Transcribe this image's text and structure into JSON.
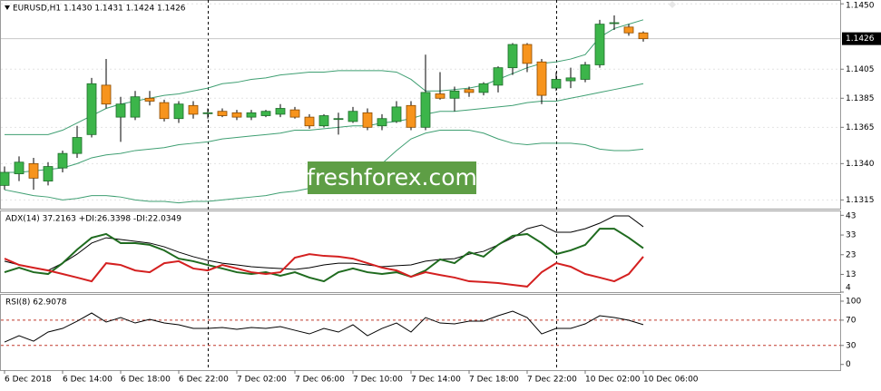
{
  "chart_data": [
    {
      "type": "candlestick",
      "title": "EURUSD,H1  1.1430 1.1431 1.1424 1.1426",
      "watermark": "freshforex.com",
      "categories": [
        "6 Dec 2018",
        null,
        null,
        null,
        "6 Dec 14:00",
        null,
        null,
        null,
        "6 Dec 18:00",
        null,
        null,
        null,
        "6 Dec 22:00",
        null,
        null,
        null,
        "7 Dec 02:00",
        null,
        null,
        null,
        "7 Dec 06:00",
        null,
        null,
        null,
        "7 Dec 10:00",
        null,
        null,
        null,
        "7 Dec 14:00",
        null,
        null,
        null,
        "7 Dec 18:00",
        null,
        null,
        null,
        "7 Dec 22:00",
        null,
        null,
        null,
        "10 Dec 02:00",
        null,
        null,
        null,
        "10 Dec 06:00"
      ],
      "open": [
        1.1325,
        1.1333,
        1.134,
        1.1328,
        1.1337,
        1.1347,
        1.136,
        1.1394,
        1.1372,
        1.1372,
        1.1385,
        1.1382,
        1.1371,
        1.138,
        1.1375,
        1.1376,
        1.1375,
        1.1372,
        1.1373,
        1.1374,
        1.1377,
        1.1372,
        1.1366,
        1.1371,
        1.1369,
        1.1375,
        1.1366,
        1.1369,
        1.138,
        1.1365,
        1.1388,
        1.1385,
        1.1391,
        1.1389,
        1.1394,
        1.1406,
        1.1422,
        1.141,
        1.1392,
        1.1397,
        1.1398,
        1.1408,
        1.1437,
        1.1434,
        1.143
      ],
      "high": [
        1.1338,
        1.1345,
        1.1344,
        1.1341,
        1.1349,
        1.1366,
        1.1399,
        1.1412,
        1.1386,
        1.139,
        1.139,
        1.1384,
        1.1383,
        1.1383,
        1.1378,
        1.1378,
        1.1377,
        1.1377,
        1.1377,
        1.1381,
        1.1379,
        1.1374,
        1.1374,
        1.1375,
        1.1379,
        1.1378,
        1.1374,
        1.1383,
        1.1383,
        1.1415,
        1.1403,
        1.1393,
        1.1393,
        1.1396,
        1.1407,
        1.1423,
        1.1423,
        1.1412,
        1.1403,
        1.1406,
        1.141,
        1.1439,
        1.1442,
        1.1436,
        1.1431
      ],
      "low": [
        1.1322,
        1.1328,
        1.1322,
        1.1325,
        1.1334,
        1.1344,
        1.1358,
        1.1378,
        1.1355,
        1.137,
        1.138,
        1.1369,
        1.1368,
        1.1371,
        1.1371,
        1.1372,
        1.137,
        1.137,
        1.1372,
        1.1372,
        1.1371,
        1.1364,
        1.1365,
        1.136,
        1.1368,
        1.1363,
        1.1363,
        1.1368,
        1.1363,
        1.1363,
        1.1384,
        1.1376,
        1.1386,
        1.1387,
        1.1389,
        1.1401,
        1.1403,
        1.1381,
        1.139,
        1.1392,
        1.1396,
        1.1406,
        1.1432,
        1.1428,
        1.1424
      ],
      "close": [
        1.1334,
        1.1341,
        1.133,
        1.1338,
        1.1347,
        1.1358,
        1.1395,
        1.1381,
        1.1381,
        1.1386,
        1.1383,
        1.1371,
        1.1381,
        1.1374,
        1.1375,
        1.1373,
        1.1372,
        1.1375,
        1.1376,
        1.1378,
        1.1372,
        1.1366,
        1.1373,
        1.1371,
        1.1376,
        1.1365,
        1.1371,
        1.1379,
        1.1365,
        1.1389,
        1.1385,
        1.139,
        1.1389,
        1.1395,
        1.1406,
        1.1422,
        1.1409,
        1.1387,
        1.1398,
        1.1399,
        1.1408,
        1.1436,
        1.1437,
        1.143,
        1.1426
      ],
      "up_color": "#3cb54a",
      "down_color": "#f7941d",
      "bands": {
        "color": "#3f9f72",
        "upper": [
          1.136,
          1.136,
          1.136,
          1.136,
          1.1363,
          1.1368,
          1.1373,
          1.1378,
          1.1381,
          1.1383,
          1.1385,
          1.1387,
          1.1388,
          1.139,
          1.1392,
          1.1395,
          1.1396,
          1.1398,
          1.1399,
          1.1401,
          1.1402,
          1.1403,
          1.1403,
          1.1404,
          1.1404,
          1.1404,
          1.1404,
          1.1403,
          1.1398,
          1.139,
          1.139,
          1.1391,
          1.1392,
          1.1394,
          1.1398,
          1.1402,
          1.1406,
          1.1409,
          1.141,
          1.1412,
          1.1415,
          1.1427,
          1.1433,
          1.1436,
          1.1439
        ],
        "middle": [
          1.1334,
          1.1334,
          1.1335,
          1.1336,
          1.1337,
          1.134,
          1.1344,
          1.1346,
          1.1347,
          1.1349,
          1.135,
          1.1351,
          1.1353,
          1.1354,
          1.1355,
          1.1357,
          1.1358,
          1.1359,
          1.136,
          1.1361,
          1.1363,
          1.1363,
          1.1364,
          1.1365,
          1.1366,
          1.1366,
          1.1368,
          1.1369,
          1.1371,
          1.1374,
          1.1376,
          1.1376,
          1.1377,
          1.1378,
          1.1379,
          1.138,
          1.1382,
          1.1383,
          1.1383,
          1.1385,
          1.1387,
          1.1389,
          1.1391,
          1.1393,
          1.1395
        ],
        "lower": [
          1.1322,
          1.132,
          1.1318,
          1.1317,
          1.1315,
          1.1316,
          1.1318,
          1.1318,
          1.1317,
          1.1315,
          1.1314,
          1.1314,
          1.1313,
          1.1314,
          1.1314,
          1.1315,
          1.1316,
          1.1317,
          1.1318,
          1.132,
          1.1321,
          1.1323,
          1.1325,
          1.1326,
          1.133,
          1.1334,
          1.134,
          1.1349,
          1.1357,
          1.1361,
          1.1363,
          1.1363,
          1.1363,
          1.1361,
          1.1357,
          1.1354,
          1.1353,
          1.1354,
          1.1354,
          1.1354,
          1.1353,
          1.135,
          1.1349,
          1.1349,
          1.135
        ]
      },
      "current_price": 1.1426,
      "ylim": [
        1.1309,
        1.1452
      ],
      "yticks": [
        {
          "value": 1.145,
          "label": "1.1450"
        },
        1.1405,
        1.1385,
        1.1365,
        {
          "value": 1.134,
          "label": "1.1340"
        },
        1.1315
      ],
      "grid": true
    },
    {
      "type": "line",
      "title": "ADX(14) 37.2163 +DI:26.3398 -DI:22.0349",
      "series": [
        {
          "color": "#000000",
          "values": [
            19.7,
            17.8,
            16.4,
            15.0,
            18.7,
            23.3,
            28.9,
            31.6,
            30.7,
            29.8,
            28.9,
            27.0,
            24.3,
            22.0,
            20.1,
            18.7,
            17.8,
            16.9,
            16.4,
            16.0,
            15.5,
            16.4,
            17.8,
            18.7,
            18.7,
            17.8,
            16.9,
            17.4,
            17.8,
            19.7,
            20.6,
            21.0,
            23.3,
            24.7,
            28.0,
            31.6,
            36.2,
            38.1,
            34.4,
            34.4,
            36.2,
            39.0,
            42.7,
            42.7,
            37.2
          ]
        },
        {
          "color": "#1f6b1f",
          "values": [
            14.1,
            16.4,
            14.1,
            13.2,
            18.7,
            25.6,
            31.6,
            33.5,
            28.9,
            28.9,
            28.0,
            25.2,
            21.0,
            19.7,
            17.8,
            16.0,
            14.1,
            13.2,
            14.1,
            12.3,
            14.1,
            11.4,
            9.5,
            14.1,
            16.0,
            14.1,
            13.2,
            14.1,
            11.8,
            15.0,
            20.6,
            18.7,
            24.3,
            22.0,
            28.0,
            32.6,
            33.5,
            28.9,
            23.3,
            25.2,
            28.0,
            36.2,
            36.2,
            31.6,
            26.3
          ]
        },
        {
          "color": "#d42020",
          "values": [
            21.0,
            17.8,
            16.4,
            15.0,
            13.2,
            11.4,
            9.5,
            18.7,
            17.8,
            15.0,
            14.1,
            18.7,
            19.7,
            16.0,
            15.0,
            17.8,
            16.0,
            14.1,
            13.2,
            14.1,
            21.5,
            23.3,
            22.4,
            22.0,
            21.0,
            18.7,
            16.4,
            15.0,
            11.8,
            14.1,
            12.7,
            11.4,
            9.5,
            9.1,
            8.6,
            7.7,
            6.8,
            14.1,
            18.7,
            16.9,
            13.2,
            11.4,
            9.5,
            13.2,
            22.0
          ]
        }
      ],
      "ylim": [
        4,
        45
      ],
      "yticks": [
        43,
        33,
        23,
        13,
        4
      ]
    },
    {
      "type": "line",
      "title": "RSI(8) 62.9078",
      "series": [
        {
          "color": "#000000",
          "values": [
            35.4,
            45.4,
            36.8,
            51.2,
            56.9,
            68.4,
            81.3,
            67.0,
            74.1,
            65.5,
            71.3,
            65.5,
            62.7,
            56.9,
            56.9,
            58.4,
            55.5,
            58.4,
            56.9,
            59.8,
            54.0,
            48.3,
            56.9,
            51.2,
            62.7,
            45.4,
            56.9,
            65.5,
            51.2,
            74.1,
            65.5,
            64.1,
            68.4,
            68.4,
            77.0,
            84.2,
            74.1,
            48.3,
            56.9,
            56.9,
            64.1,
            77.0,
            74.1,
            69.8,
            62.9
          ]
        }
      ],
      "levels": [
        70,
        30
      ],
      "level_color": "#c0392b",
      "ylim": [
        -9,
        110
      ],
      "yticks": [
        100,
        70,
        30,
        0
      ]
    }
  ]
}
